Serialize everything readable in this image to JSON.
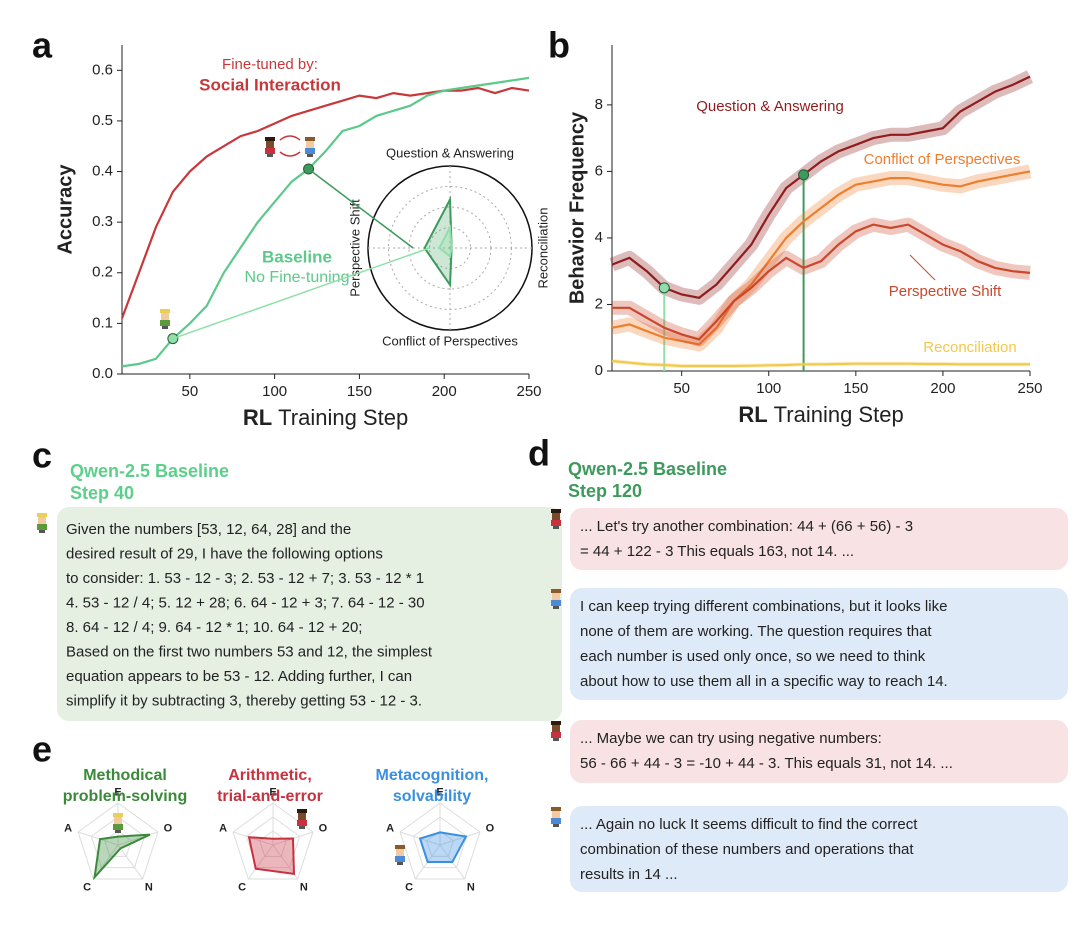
{
  "panel_labels": {
    "a": "a",
    "b": "b",
    "c": "c",
    "d": "d",
    "e": "e"
  },
  "chart_data": [
    {
      "type": "line",
      "y_label": "Accuracy",
      "x_label_bold": "RL",
      "x_label": "Training Step",
      "x": [
        10,
        20,
        30,
        40,
        50,
        60,
        70,
        80,
        90,
        100,
        110,
        120,
        130,
        140,
        150,
        160,
        170,
        180,
        190,
        200,
        210,
        220,
        230,
        240,
        250
      ],
      "xlim": [
        10,
        250
      ],
      "xticks": [
        50,
        100,
        150,
        200,
        250
      ],
      "ylim": [
        0,
        0.65
      ],
      "yticks": [
        {
          "value": 0,
          "label": "0.0"
        },
        0.1,
        0.2,
        0.3,
        0.4,
        0.5,
        0.6
      ],
      "annotations": [
        "Fine-tuned by:",
        "No Fine-tuning"
      ],
      "series": [
        {
          "name": "Social Interaction",
          "color": "#c8383a",
          "values": [
            0.11,
            0.2,
            0.29,
            0.36,
            0.4,
            0.43,
            0.45,
            0.47,
            0.48,
            0.495,
            0.51,
            0.52,
            0.53,
            0.54,
            0.55,
            0.545,
            0.555,
            0.55,
            0.555,
            0.56,
            0.56,
            0.565,
            0.555,
            0.565,
            0.56
          ]
        },
        {
          "name": "Baseline",
          "color": "#5cc98a",
          "values": [
            0.015,
            0.02,
            0.03,
            0.07,
            0.1,
            0.135,
            0.2,
            0.25,
            0.3,
            0.34,
            0.38,
            0.405,
            0.44,
            0.48,
            0.49,
            0.51,
            0.52,
            0.53,
            0.55,
            0.56,
            0.565,
            0.57,
            0.575,
            0.58,
            0.585
          ],
          "marked_steps": [
            40,
            120
          ],
          "marker_colors": [
            "#8ee0a8",
            "#3d9a5c"
          ]
        }
      ]
    },
    {
      "type": "line",
      "y_label": "Behavior Frequency",
      "x_label_bold": "RL",
      "x_label": "Training Step",
      "x": [
        10,
        20,
        30,
        40,
        50,
        60,
        70,
        80,
        90,
        100,
        110,
        120,
        130,
        140,
        150,
        160,
        170,
        180,
        190,
        200,
        210,
        220,
        230,
        240,
        250
      ],
      "xlim": [
        10,
        250
      ],
      "xticks": [
        50,
        100,
        150,
        200,
        250
      ],
      "ylim": [
        0,
        9.8
      ],
      "yticks": [
        0,
        2,
        4,
        6,
        8
      ],
      "series": [
        {
          "name": "Question & Answering",
          "color": "#8f1d1d",
          "values": [
            3.2,
            3.4,
            3.0,
            2.5,
            2.3,
            2.2,
            2.6,
            3.2,
            3.8,
            4.7,
            5.5,
            5.9,
            6.3,
            6.6,
            6.8,
            7.0,
            7.1,
            7.1,
            7.2,
            7.3,
            7.8,
            8.1,
            8.4,
            8.6,
            8.85
          ],
          "marked_steps": [
            40,
            120
          ],
          "marker_colors": [
            "#8ee0a8",
            "#3d9a5c"
          ]
        },
        {
          "name": "Conflict of Perspectives",
          "color": "#ef7d2e",
          "values": [
            1.3,
            1.4,
            1.2,
            1.0,
            0.9,
            0.8,
            1.3,
            2.1,
            2.6,
            3.3,
            4.0,
            4.5,
            4.9,
            5.3,
            5.6,
            5.7,
            5.8,
            5.8,
            5.7,
            5.6,
            5.55,
            5.7,
            5.8,
            5.9,
            6.0
          ]
        },
        {
          "name": "Perspective Shift",
          "color": "#c9472b",
          "values": [
            1.9,
            1.9,
            1.6,
            1.3,
            1.1,
            0.95,
            1.5,
            2.1,
            2.5,
            3.0,
            3.4,
            3.1,
            3.3,
            3.8,
            4.2,
            4.4,
            4.3,
            4.4,
            4.1,
            3.8,
            3.6,
            3.3,
            3.1,
            3.0,
            2.95
          ]
        },
        {
          "name": "Reconciliation",
          "color": "#f2c94c",
          "values": [
            0.3,
            0.25,
            0.2,
            0.18,
            0.15,
            0.15,
            0.15,
            0.15,
            0.16,
            0.17,
            0.18,
            0.2,
            0.2,
            0.21,
            0.22,
            0.22,
            0.22,
            0.22,
            0.21,
            0.21,
            0.2,
            0.2,
            0.2,
            0.2,
            0.2
          ]
        }
      ]
    },
    {
      "type": "radar",
      "axes": [
        "Question & Answering",
        "Reconciliation",
        "Conflict of Perspectives",
        "Perspective Shift"
      ],
      "rlim": [
        0,
        10
      ],
      "series": [
        {
          "color": "#3d9a5c",
          "values": [
            5.9,
            0.2,
            4.5,
            3.1
          ]
        },
        {
          "color": "#8ee0a8",
          "values": [
            2.5,
            0.18,
            1.0,
            1.3
          ]
        }
      ]
    },
    {
      "type": "radar",
      "title": [
        "Methodical",
        "problem-solving"
      ],
      "title_color": "#3a8a3a",
      "axes": [
        "E",
        "O",
        "N",
        "C",
        "A"
      ],
      "rlim": [
        0,
        1
      ],
      "series": [
        {
          "color": "#3a8a3a",
          "values": [
            0.2,
            0.8,
            0.1,
            0.95,
            0.45
          ]
        }
      ]
    },
    {
      "type": "radar",
      "title": [
        "Arithmetic,",
        "trial-and-error"
      ],
      "title_color": "#c8323e",
      "axes": [
        "E",
        "O",
        "N",
        "C",
        "A"
      ],
      "rlim": [
        0,
        1
      ],
      "series": [
        {
          "color": "#c8323e",
          "values": [
            0.15,
            0.5,
            0.85,
            0.7,
            0.6
          ]
        }
      ]
    },
    {
      "type": "radar",
      "title": [
        "Metacognition,",
        "solvability"
      ],
      "title_color": "#3b8fe0",
      "axes": [
        "E",
        "O",
        "N",
        "C",
        "A"
      ],
      "rlim": [
        0,
        1
      ],
      "series": [
        {
          "color": "#3b8fe0",
          "values": [
            0.3,
            0.65,
            0.5,
            0.5,
            0.5
          ]
        }
      ]
    }
  ],
  "panel_c": {
    "title": "Qwen-2.5 Baseline",
    "step": "Step 40",
    "lines": [
      "Given the numbers [53, 12, 64, 28] and the",
      "desired result of 29, I have the following options",
      "to consider: 1. 53 - 12 - 3; 2. 53 - 12 + 7; 3. 53 - 12 * 1",
      "4. 53 - 12 / 4; 5. 12 + 28; 6. 64 - 12 + 3; 7. 64 - 12 - 30",
      "8. 64 - 12 / 4; 9. 64 - 12 * 1; 10. 64 - 12 + 20;",
      "Based on the first two numbers 53 and 12, the simplest",
      "equation appears to be 53 - 12.  Adding further, I can",
      "simplify it by subtracting 3, thereby getting 53 - 12 - 3."
    ]
  },
  "panel_d": {
    "title": "Qwen-2.5 Baseline",
    "step": "Step 120",
    "messages": [
      {
        "lines": [
          "... Let's try another combination: 44 + (66 + 56) - 3",
          "= 44 + 122 - 3  This equals 163, not 14. ..."
        ]
      },
      {
        "lines": [
          "I can keep trying different combinations, but it looks like",
          "none of them are working. The question requires that",
          "each number is used only once, so we need to think",
          "about how to use them all in a specific way to reach 14."
        ]
      },
      {
        "lines": [
          "... Maybe we can try using negative numbers:",
          "56 - 66 + 44 - 3 = -10 + 44 - 3. This equals 31, not 14. ..."
        ]
      },
      {
        "lines": [
          "... Again no luck It seems difficult to find the correct",
          "combination of these numbers and operations that",
          "results in 14 ..."
        ]
      }
    ]
  }
}
